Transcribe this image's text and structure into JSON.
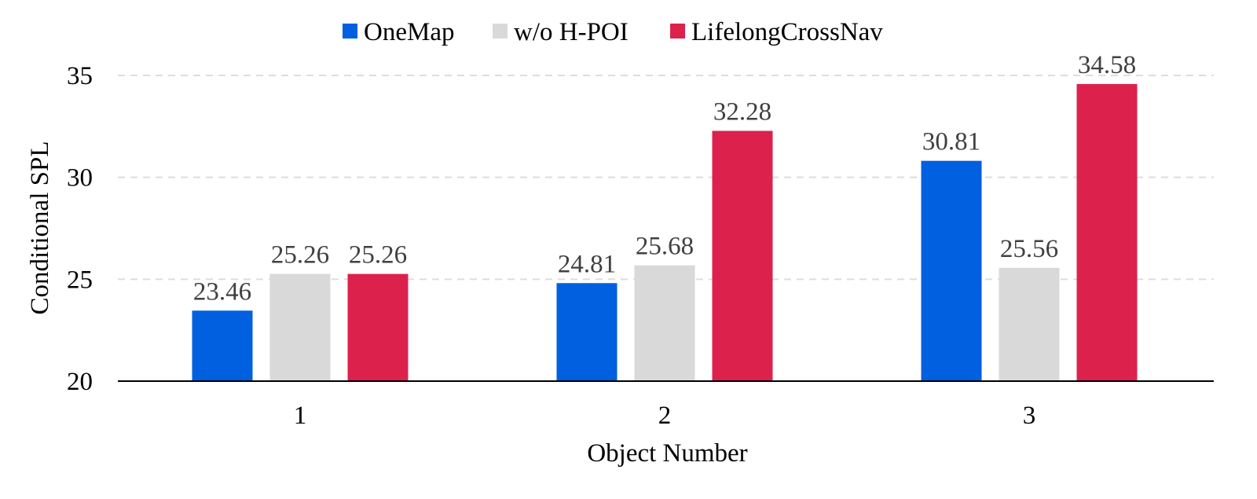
{
  "chart_data": {
    "type": "bar",
    "categories": [
      "1",
      "2",
      "3"
    ],
    "series": [
      {
        "name": "OneMap",
        "values": [
          23.46,
          24.81,
          30.81
        ],
        "color": "#0060DF"
      },
      {
        "name": "w/o H-POI",
        "values": [
          25.26,
          25.68,
          25.56
        ],
        "color": "#D9D9D9"
      },
      {
        "name": "LifelongCrossNav",
        "values": [
          25.26,
          32.28,
          34.58
        ],
        "color": "#DC224C"
      }
    ],
    "title": "",
    "xlabel": "Object Number",
    "ylabel": "Conditional SPL",
    "ylim": [
      20,
      35
    ],
    "yticks": [
      20,
      25,
      30,
      35
    ],
    "grid": "horizontal dashed",
    "legend_position": "top-center"
  }
}
